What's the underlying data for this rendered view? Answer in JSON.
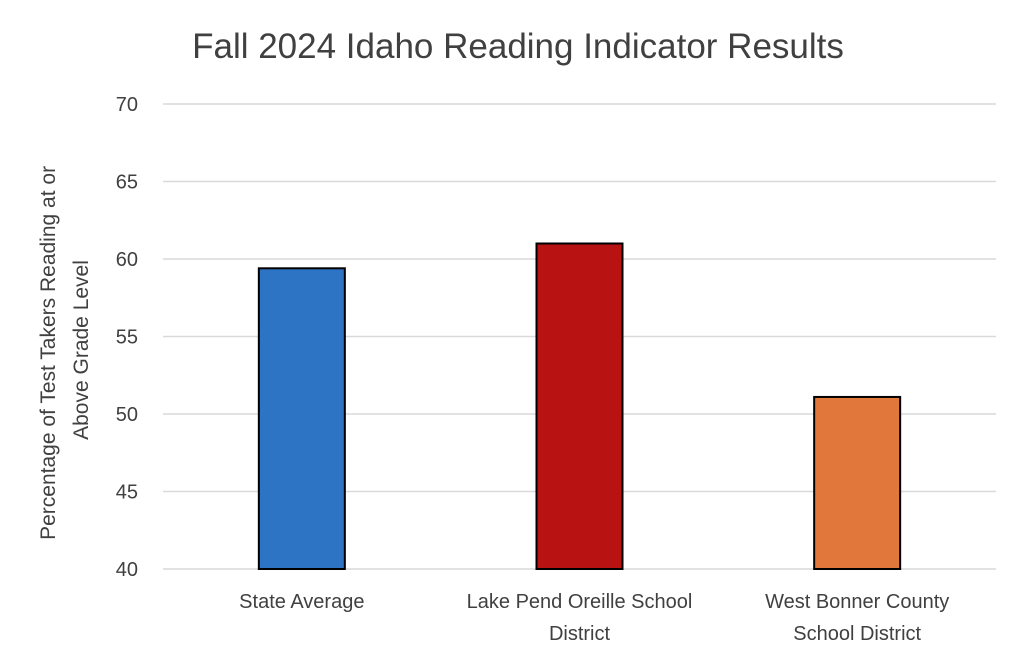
{
  "chart_data": {
    "type": "bar",
    "title": "Fall 2024 Idaho Reading Indicator Results",
    "ylabel_lines": [
      "Percentage of Test Takers Reading at or",
      "Above Grade Level"
    ],
    "xlabel": "",
    "ylim": [
      40,
      70
    ],
    "yticks": [
      "40",
      "45",
      "50",
      "55",
      "60",
      "65",
      "70"
    ],
    "grid": true,
    "categories": [
      {
        "lines": [
          "State Average"
        ]
      },
      {
        "lines": [
          "Lake Pend Oreille School",
          "District"
        ]
      },
      {
        "lines": [
          "West Bonner County",
          "School District"
        ]
      }
    ],
    "values": [
      59.4,
      61.0,
      51.1
    ],
    "colors": [
      "#2e74c5",
      "#b81212",
      "#e1773a"
    ]
  }
}
